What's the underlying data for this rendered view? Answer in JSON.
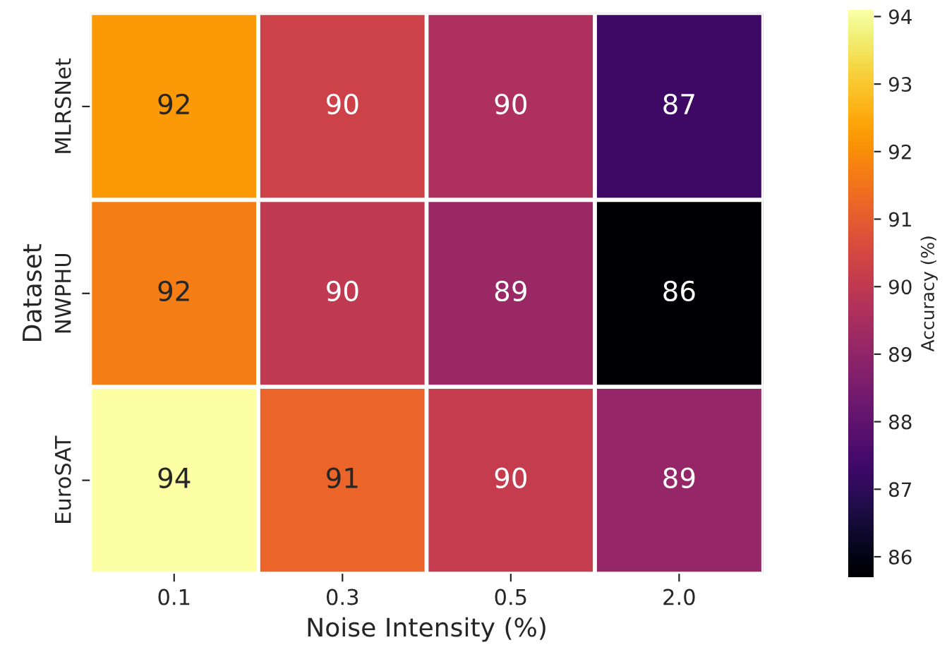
{
  "chart_data": {
    "type": "heatmap",
    "xlabel": "Noise Intensity (%)",
    "ylabel": "Dataset",
    "clabel": "Accuracy (%)",
    "categories": [
      "0.1",
      "0.3",
      "0.5",
      "2.0"
    ],
    "y_categories": [
      "MLRSNet",
      "NWPHU",
      "EuroSAT"
    ],
    "cells": [
      [
        92.2,
        90.3,
        89.6,
        87.3
      ],
      [
        91.7,
        90.0,
        89.2,
        85.7
      ],
      [
        94.1,
        91.2,
        90.1,
        89.1
      ]
    ],
    "cell_labels": [
      [
        "92",
        "90",
        "90",
        "87"
      ],
      [
        "92",
        "90",
        "89",
        "86"
      ],
      [
        "94",
        "91",
        "90",
        "89"
      ]
    ],
    "clim": [
      85.7,
      94.1
    ],
    "cticks": [
      86,
      87,
      88,
      89,
      90,
      91,
      92,
      93,
      94
    ]
  }
}
